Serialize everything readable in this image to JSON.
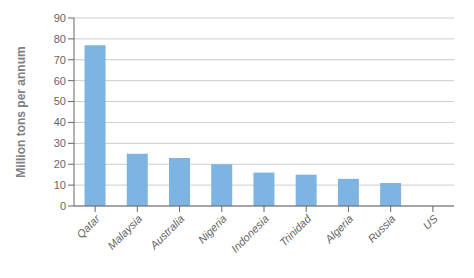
{
  "chart_data": {
    "type": "bar",
    "ylabel": "Million tons per annum",
    "categories": [
      "Qatar",
      "Malaysia",
      "Australia",
      "Nigeria",
      "Indonesia",
      "Trinidad",
      "Algeria",
      "Russia",
      "US"
    ],
    "values": [
      77,
      25,
      23,
      20,
      16,
      15,
      13,
      11,
      0
    ],
    "color": "#7eb4e2",
    "ylim": [
      0,
      90
    ],
    "yticks": [
      0,
      10,
      20,
      30,
      40,
      50,
      60,
      70,
      80,
      90
    ],
    "grid": true
  }
}
